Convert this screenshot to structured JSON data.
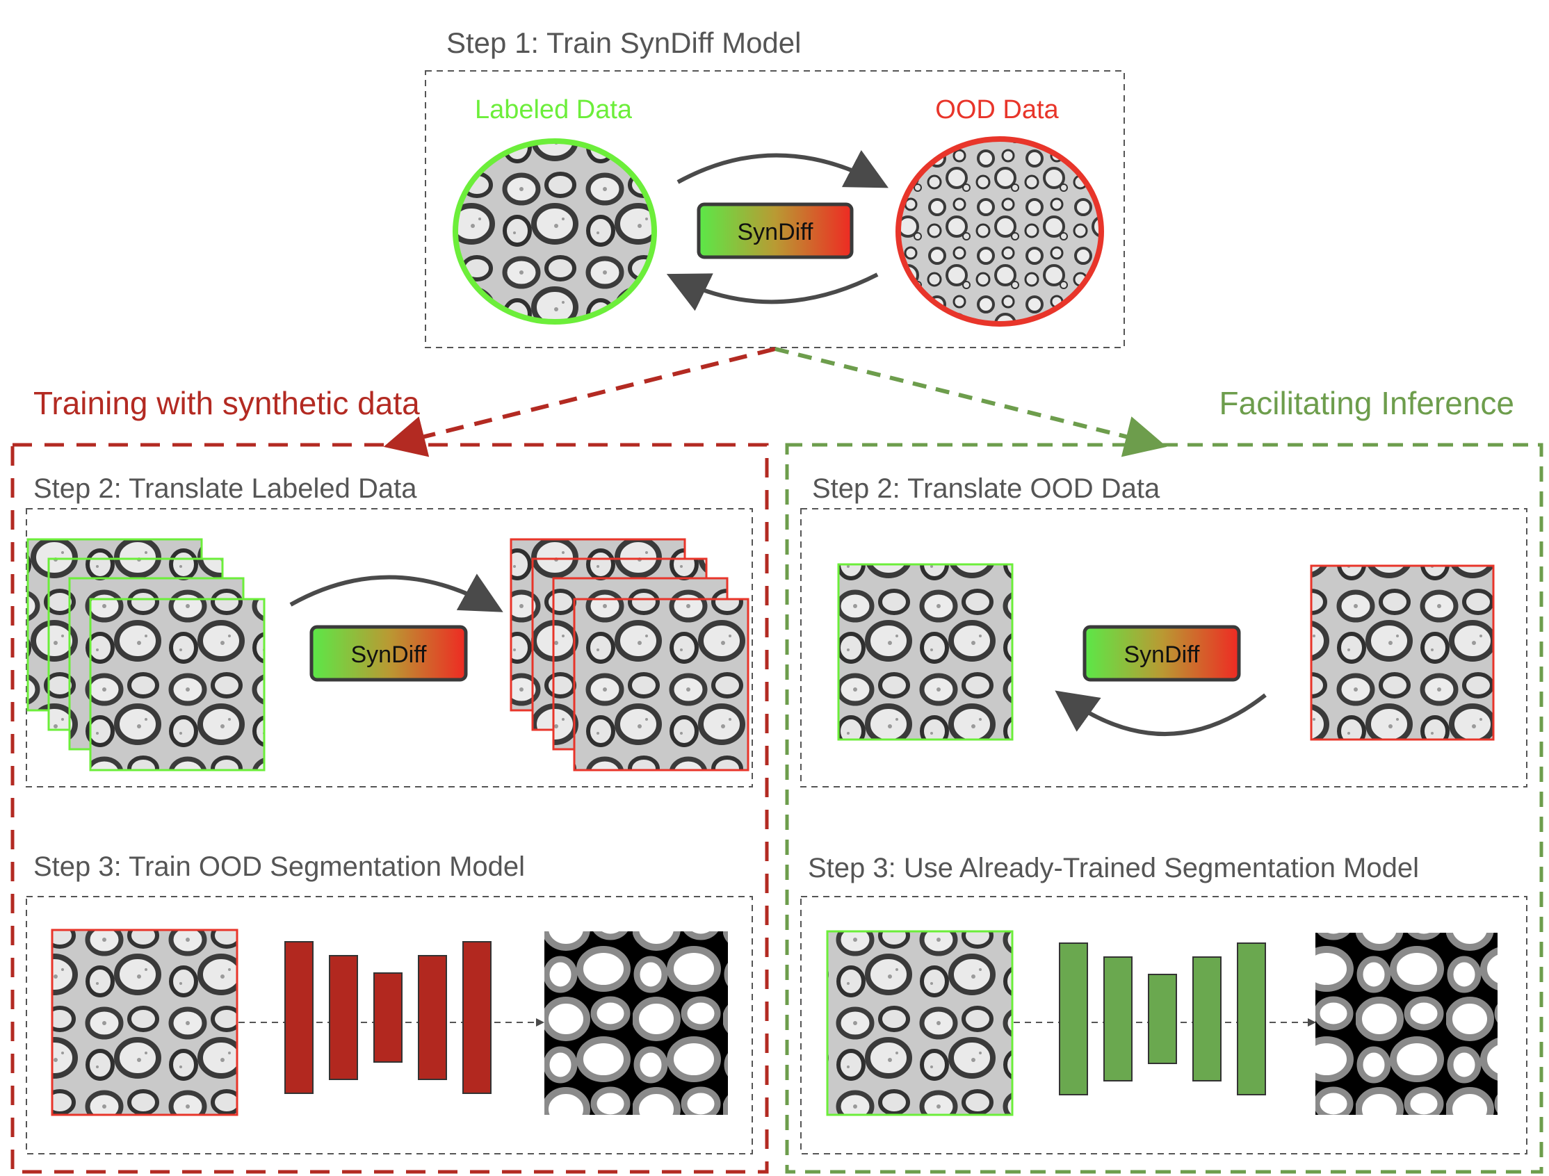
{
  "step1": {
    "title": "Step 1: Train SynDiff Model",
    "labeled_label": "Labeled Data",
    "ood_label": "OOD Data",
    "syndiff_label": "SynDiff"
  },
  "left_branch": {
    "title": "Training with synthetic data",
    "step2_title": "Step 2: Translate Labeled Data",
    "step3_title": "Step 3: Train OOD Segmentation Model",
    "syndiff_label": "SynDiff"
  },
  "right_branch": {
    "title": "Facilitating Inference",
    "step2_title": "Step 2: Translate OOD Data",
    "step3_title": "Step 3: Use Already-Trained Segmentation Model",
    "syndiff_label": "SynDiff"
  },
  "colors": {
    "labeled_green": "#6cee3a",
    "ood_red": "#e8352a",
    "branch_red": "#b32a22",
    "branch_green": "#6d9d4c",
    "network_red": "#b2281f",
    "network_green": "#6aa84f",
    "title_gray": "#555555",
    "arrow_gray": "#4a4a4a"
  },
  "icons": {
    "micrograph": "electron-micrograph-thumbnail",
    "mask": "segmentation-mask-thumbnail",
    "network": "unet-bars-icon"
  }
}
